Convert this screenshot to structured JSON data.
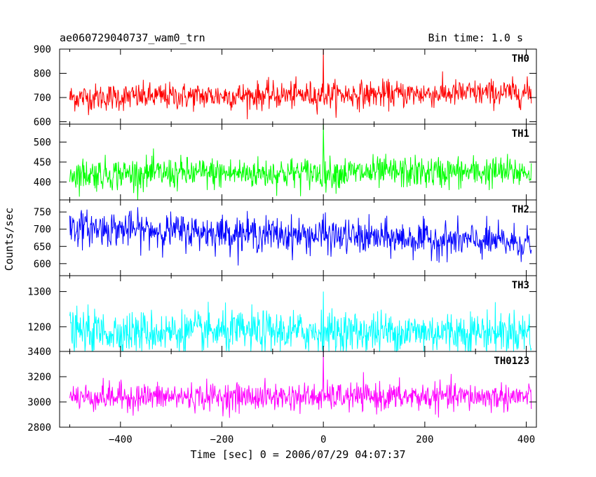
{
  "chart_data": {
    "type": "line",
    "title": "ae060729040737_wam0_trn",
    "subtitle": "Bin time: 1.0 s",
    "xlabel": "Time [sec] 0 = 2006/07/29 04:07:37",
    "ylabel": "Counts/sec",
    "xlim": [
      -520,
      420
    ],
    "x_ticks": [
      -400,
      -200,
      0,
      200,
      400
    ],
    "x_data_range": [
      -500,
      410
    ],
    "bin_time": 1.0,
    "series": [
      {
        "name": "TH0",
        "color": "#ff0000",
        "ylim": [
          590,
          900
        ],
        "y_ticks": [
          600,
          700,
          800,
          900
        ],
        "mean_start": 700,
        "mean_end": 720,
        "noise": 28,
        "spike": 900
      },
      {
        "name": "TH1",
        "color": "#00ff00",
        "ylim": [
          355,
          545
        ],
        "y_ticks": [
          400,
          450,
          500
        ],
        "mean_start": 420,
        "mean_end": 425,
        "noise": 20,
        "spike": 545
      },
      {
        "name": "TH2",
        "color": "#0000ff",
        "ylim": [
          565,
          785
        ],
        "y_ticks": [
          600,
          650,
          700,
          750
        ],
        "mean_start": 705,
        "mean_end": 660,
        "noise": 25,
        "spike": 745
      },
      {
        "name": "TH3",
        "color": "#00ffff",
        "ylim": [
          1130,
          1345
        ],
        "y_ticks": [
          1200,
          1300
        ],
        "mean_start": 1185,
        "mean_end": 1185,
        "noise": 30,
        "spike": 1300
      },
      {
        "name": "TH0123",
        "color": "#ff00ff",
        "ylim": [
          2800,
          3400
        ],
        "y_ticks": [
          2800,
          3000,
          3200,
          3400
        ],
        "mean_start": 3040,
        "mean_end": 3040,
        "noise": 55,
        "spike": 3400
      }
    ]
  }
}
